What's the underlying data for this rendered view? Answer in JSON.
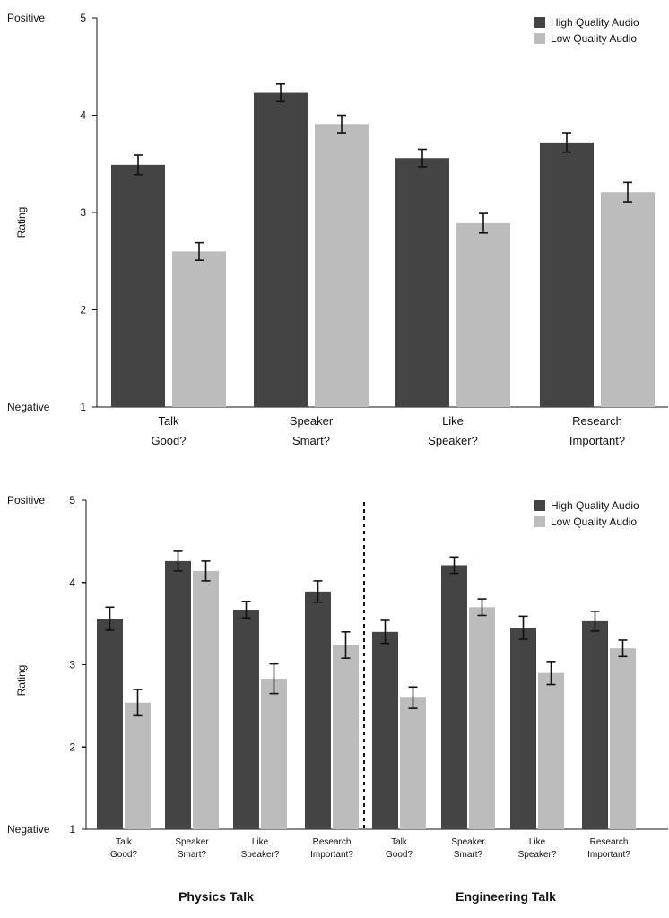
{
  "chart_data": [
    {
      "type": "bar",
      "title": "",
      "xlabel": "",
      "ylabel": "Rating",
      "ylim": [
        1,
        5
      ],
      "yticks": [
        1,
        2,
        3,
        4,
        5
      ],
      "y_axis_end_labels": {
        "top": "Positive",
        "bottom": "Negative"
      },
      "grid": false,
      "legend_position": "top-right",
      "categories": [
        [
          "Talk",
          "Good?"
        ],
        [
          "Speaker",
          "Smart?"
        ],
        [
          "Like",
          "Speaker?"
        ],
        [
          "Research",
          "Important?"
        ]
      ],
      "series": [
        {
          "name": "High Quality Audio",
          "color": "#444444",
          "values": [
            3.49,
            4.23,
            3.56,
            3.72
          ],
          "errors": [
            0.1,
            0.09,
            0.09,
            0.1
          ]
        },
        {
          "name": "Low Quality Audio",
          "color": "#bcbcbc",
          "values": [
            2.6,
            3.91,
            2.89,
            3.21
          ],
          "errors": [
            0.09,
            0.09,
            0.1,
            0.1
          ]
        }
      ]
    },
    {
      "type": "bar",
      "title": "",
      "xlabel": "",
      "ylabel": "Rating",
      "ylim": [
        1,
        5
      ],
      "yticks": [
        1,
        2,
        3,
        4,
        5
      ],
      "y_axis_end_labels": {
        "top": "Positive",
        "bottom": "Negative"
      },
      "grid": false,
      "legend_position": "top-right",
      "groups": [
        {
          "label": "Physics Talk",
          "categories": [
            [
              "Talk",
              "Good?"
            ],
            [
              "Speaker",
              "Smart?"
            ],
            [
              "Like",
              "Speaker?"
            ],
            [
              "Research",
              "Important?"
            ]
          ]
        },
        {
          "label": "Engineering Talk",
          "categories": [
            [
              "Talk",
              "Good?"
            ],
            [
              "Speaker",
              "Smart?"
            ],
            [
              "Like",
              "Speaker?"
            ],
            [
              "Research",
              "Important?"
            ]
          ]
        }
      ],
      "series": [
        {
          "name": "High Quality Audio",
          "color": "#444444",
          "values": [
            3.56,
            4.26,
            3.67,
            3.89,
            3.4,
            4.21,
            3.45,
            3.53
          ],
          "errors": [
            0.14,
            0.12,
            0.1,
            0.13,
            0.14,
            0.1,
            0.14,
            0.12
          ]
        },
        {
          "name": "Low Quality Audio",
          "color": "#bcbcbc",
          "values": [
            2.54,
            4.14,
            2.83,
            3.24,
            2.6,
            3.7,
            2.9,
            3.2
          ],
          "errors": [
            0.16,
            0.12,
            0.18,
            0.16,
            0.13,
            0.1,
            0.14,
            0.1
          ]
        }
      ]
    }
  ]
}
